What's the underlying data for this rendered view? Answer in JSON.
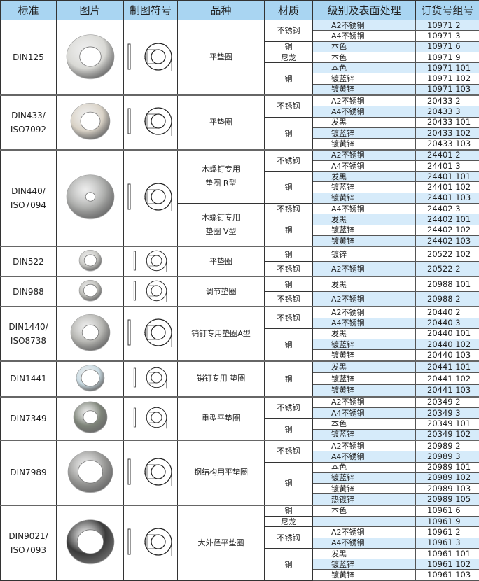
{
  "header": [
    "标准",
    "图片",
    "制图符号",
    "品种",
    "材质",
    "级别及表面处理",
    "订货号组号"
  ],
  "groups": [
    {
      "standard": "DIN125",
      "photo": {
        "icon": "flat-washer-photo",
        "color": "#d8d8d4",
        "hole": 0.45
      },
      "drawing": "washer-drawing-icon",
      "variants": [
        {
          "name": "平垫圈",
          "materials": [
            {
              "material": "不锈钢",
              "rows": [
                {
                  "finish": "A2不锈钢",
                  "order": "10971 2",
                  "shaded": true
                },
                {
                  "finish": "A4不锈钢",
                  "order": "10971 3",
                  "shaded": false
                }
              ]
            },
            {
              "material": "铜",
              "rows": [
                {
                  "finish": "本色",
                  "order": "10971 6",
                  "shaded": true
                }
              ]
            },
            {
              "material": "尼龙",
              "rows": [
                {
                  "finish": "本色",
                  "order": "10971 9",
                  "shaded": false
                }
              ]
            },
            {
              "material": "钢",
              "rows": [
                {
                  "finish": "本色",
                  "order": "10971 101",
                  "shaded": true
                },
                {
                  "finish": "镀蓝锌",
                  "order": "10971 102",
                  "shaded": false
                },
                {
                  "finish": "镀黄锌",
                  "order": "10971 103",
                  "shaded": true
                }
              ]
            }
          ]
        }
      ]
    },
    {
      "standard": "DIN433/\nISO7092",
      "photo": {
        "icon": "flat-washer-photo",
        "color": "#d9d2c6",
        "hole": 0.5
      },
      "drawing": "washer-drawing-icon",
      "variants": [
        {
          "name": "平垫圈",
          "materials": [
            {
              "material": "不锈钢",
              "rows": [
                {
                  "finish": "A2不锈钢",
                  "order": "20433 2",
                  "shaded": false
                },
                {
                  "finish": "A4不锈钢",
                  "order": "20433 3",
                  "shaded": true
                }
              ]
            },
            {
              "material": "钢",
              "rows": [
                {
                  "finish": "发黑",
                  "order": "20433 101",
                  "shaded": false
                },
                {
                  "finish": "镀蓝锌",
                  "order": "20433 102",
                  "shaded": true
                },
                {
                  "finish": "镀黄锌",
                  "order": "20433 103",
                  "shaded": false
                }
              ]
            }
          ]
        }
      ]
    },
    {
      "standard": "DIN440/\nISO7094",
      "photo": {
        "icon": "wood-screw-washer-photo",
        "color": "#a9aaa8",
        "hole": 0.2
      },
      "drawing": "washer-drawing-icon",
      "variants": [
        {
          "name": "木螺钉专用\n垫圈 R型",
          "materials": [
            {
              "material": "不锈钢",
              "rows": [
                {
                  "finish": "A2不锈钢",
                  "order": "24401 2",
                  "shaded": true
                },
                {
                  "finish": "A4不锈钢",
                  "order": "24401 3",
                  "shaded": false
                }
              ]
            },
            {
              "material": "钢",
              "rows": [
                {
                  "finish": "发黑",
                  "order": "24401 101",
                  "shaded": true
                },
                {
                  "finish": "镀蓝锌",
                  "order": "24401 102",
                  "shaded": false
                },
                {
                  "finish": "镀黄锌",
                  "order": "24401 103",
                  "shaded": true
                }
              ]
            }
          ]
        },
        {
          "name": "木螺钉专用\n垫圈 V型",
          "materials": [
            {
              "material": "不锈钢",
              "rows": [
                {
                  "finish": "A4不锈钢",
                  "order": "24402 3",
                  "shaded": false
                }
              ]
            },
            {
              "material": "钢",
              "rows": [
                {
                  "finish": "发黑",
                  "order": "24402 101",
                  "shaded": true
                },
                {
                  "finish": "镀蓝锌",
                  "order": "24402 102",
                  "shaded": false
                },
                {
                  "finish": "镀黄锌",
                  "order": "24402 103",
                  "shaded": true
                }
              ]
            }
          ]
        }
      ]
    },
    {
      "standard": "DIN522",
      "photo": {
        "icon": "small-washer-photo",
        "color": "#c8c8c4",
        "hole": 0.55
      },
      "drawing": "washer-drawing-icon",
      "variants": [
        {
          "name": "平垫圈",
          "materials": [
            {
              "material": "钢",
              "rows": [
                {
                  "finish": "镀锌",
                  "order": "20522 102",
                  "shaded": false
                }
              ]
            },
            {
              "material": "不锈钢",
              "rows": [
                {
                  "finish": "A2不锈钢",
                  "order": "20522 2",
                  "shaded": true
                }
              ]
            }
          ]
        }
      ]
    },
    {
      "standard": "DIN988",
      "photo": {
        "icon": "shim-washer-photo",
        "color": "#bdbdb8",
        "hole": 0.6
      },
      "drawing": "washer-drawing-icon",
      "variants": [
        {
          "name": "调节垫圈",
          "materials": [
            {
              "material": "钢",
              "rows": [
                {
                  "finish": "发黑",
                  "order": "20988 101",
                  "shaded": false
                }
              ]
            },
            {
              "material": "不锈钢",
              "rows": [
                {
                  "finish": "A2不锈钢",
                  "order": "20988 2",
                  "shaded": true
                }
              ]
            }
          ]
        }
      ]
    },
    {
      "standard": "DIN1440/\nISO8738",
      "photo": {
        "icon": "pin-washer-photo",
        "color": "#b4b4b0",
        "hole": 0.42
      },
      "drawing": "washer-drawing-icon",
      "variants": [
        {
          "name": "销钉专用垫圈A型",
          "materials": [
            {
              "material": "不锈钢",
              "rows": [
                {
                  "finish": "A2不锈钢",
                  "order": "20440 2",
                  "shaded": false
                },
                {
                  "finish": "A4不锈钢",
                  "order": "20440 3",
                  "shaded": true
                }
              ]
            },
            {
              "material": "钢",
              "rows": [
                {
                  "finish": "发黑",
                  "order": "20440 101",
                  "shaded": false
                },
                {
                  "finish": "镀蓝锌",
                  "order": "20440 102",
                  "shaded": true
                },
                {
                  "finish": "镀黄锌",
                  "order": "20440 103",
                  "shaded": false
                }
              ]
            }
          ]
        }
      ]
    },
    {
      "standard": "DIN1441",
      "photo": {
        "icon": "pin-washer-photo",
        "color": "#c9dbe3",
        "hole": 0.65
      },
      "drawing": "washer-drawing-icon",
      "variants": [
        {
          "name": "销钉专用 垫圈",
          "materials": [
            {
              "material": "钢",
              "rows": [
                {
                  "finish": "发黑",
                  "order": "20441 101",
                  "shaded": true
                },
                {
                  "finish": "镀蓝锌",
                  "order": "20441 102",
                  "shaded": false
                },
                {
                  "finish": "镀黄锌",
                  "order": "20441 103",
                  "shaded": true
                }
              ]
            }
          ]
        }
      ]
    },
    {
      "standard": "DIN7349",
      "photo": {
        "icon": "heavy-washer-photo",
        "color": "#7f857a",
        "hole": 0.42
      },
      "drawing": "washer-drawing-icon",
      "variants": [
        {
          "name": "重型平垫圈",
          "materials": [
            {
              "material": "不锈钢",
              "rows": [
                {
                  "finish": "A2不锈钢",
                  "order": "20349 2",
                  "shaded": false
                },
                {
                  "finish": "A4不锈钢",
                  "order": "20349 3",
                  "shaded": true
                }
              ]
            },
            {
              "material": "钢",
              "rows": [
                {
                  "finish": "本色",
                  "order": "20349 101",
                  "shaded": false
                },
                {
                  "finish": "镀蓝锌",
                  "order": "20349 102",
                  "shaded": true
                }
              ]
            }
          ]
        }
      ]
    },
    {
      "standard": "DIN7989",
      "photo": {
        "icon": "steel-structure-washer-photo",
        "color": "#9a9a98",
        "hole": 0.55
      },
      "drawing": "washer-drawing-icon",
      "variants": [
        {
          "name": "钢结构用平垫圈",
          "materials": [
            {
              "material": "不锈钢",
              "rows": [
                {
                  "finish": "A2不锈钢",
                  "order": "20989 2",
                  "shaded": false
                },
                {
                  "finish": "A4不锈钢",
                  "order": "20989 3",
                  "shaded": true
                }
              ]
            },
            {
              "material": "钢",
              "rows": [
                {
                  "finish": "本色",
                  "order": "20989 101",
                  "shaded": false
                },
                {
                  "finish": "镀蓝锌",
                  "order": "20989 102",
                  "shaded": true
                },
                {
                  "finish": "镀黄锌",
                  "order": "20989 103",
                  "shaded": false
                },
                {
                  "finish": "热镀锌",
                  "order": "20989 105",
                  "shaded": true
                }
              ]
            }
          ]
        }
      ]
    },
    {
      "standard": "DIN9021/\nISO7093",
      "photo": {
        "icon": "large-washer-photo",
        "color": "#3a3a3a",
        "hole": 0.55
      },
      "drawing": "washer-drawing-icon",
      "variants": [
        {
          "name": "大外径平垫圈",
          "materials": [
            {
              "material": "铜",
              "rows": [
                {
                  "finish": "本色",
                  "order": "10961 6",
                  "shaded": false
                }
              ]
            },
            {
              "material": "尼龙",
              "rows": [
                {
                  "finish": "",
                  "order": "10961 9",
                  "shaded": true
                }
              ]
            },
            {
              "material": "不锈钢",
              "rows": [
                {
                  "finish": "A2不锈钢",
                  "order": "10961 2",
                  "shaded": false
                },
                {
                  "finish": "A4不锈钢",
                  "order": "10961 3",
                  "shaded": true
                }
              ]
            },
            {
              "material": "钢",
              "rows": [
                {
                  "finish": "发黑",
                  "order": "10961 101",
                  "shaded": false
                },
                {
                  "finish": "镀蓝锌",
                  "order": "10961 102",
                  "shaded": true
                },
                {
                  "finish": "镀黄锌",
                  "order": "10961 103",
                  "shaded": false
                }
              ]
            }
          ]
        }
      ]
    }
  ]
}
